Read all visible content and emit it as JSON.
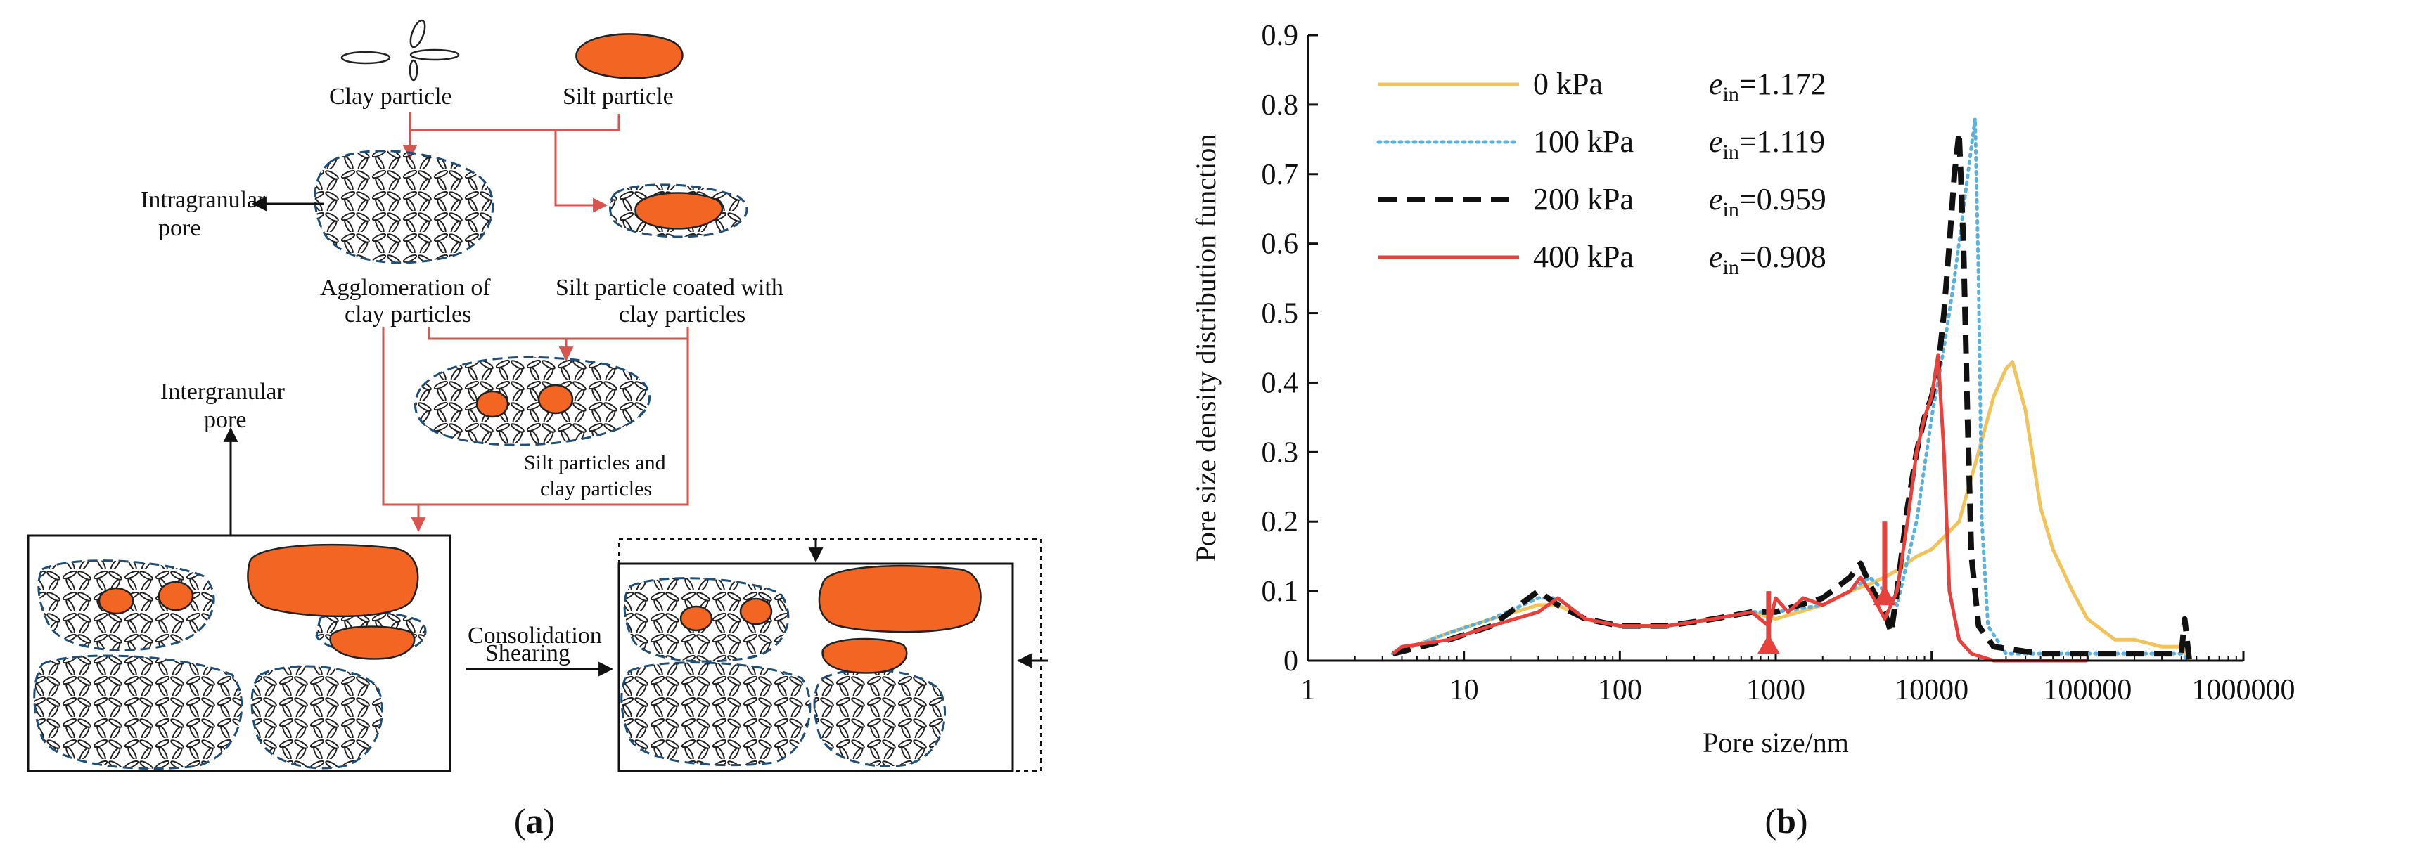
{
  "panel_a": {
    "label_open": "(",
    "label_letter": "a",
    "label_close": ")",
    "texts": {
      "clay_particle": "Clay particle",
      "silt_particle": "Silt particle",
      "intragranular_1": "Intragranular",
      "intragranular_2": "pore",
      "agglomeration_1": "Agglomeration of",
      "agglomeration_2": "clay particles",
      "silt_coated_1": "Silt particle coated with",
      "silt_coated_2": "clay particles",
      "intergranular_1": "Intergranular",
      "intergranular_2": "pore",
      "silt_clay_1": "Silt particles and",
      "silt_clay_2": "clay particles",
      "consolidation": "Consolidation",
      "shearing": "Shearing"
    },
    "colors": {
      "silt": "#f26522",
      "arrow": "#d9534f",
      "outline": "#1f4e79"
    }
  },
  "panel_b": {
    "label_open": "(",
    "label_letter": "b",
    "label_close": ")"
  },
  "chart_data": {
    "type": "line",
    "xlabel": "Pore size/nm",
    "ylabel": "Pore size density distribution function",
    "xscale": "log",
    "xlim": [
      1,
      1000000
    ],
    "ylim": [
      0,
      0.9
    ],
    "xticks": [
      1,
      10,
      100,
      1000,
      10000,
      100000,
      1000000
    ],
    "xtick_labels": [
      "1",
      "10",
      "100",
      "1000",
      "10000",
      "100000",
      "1000000"
    ],
    "yticks": [
      0,
      0.1,
      0.2,
      0.3,
      0.4,
      0.5,
      0.6,
      0.7,
      0.8,
      0.9
    ],
    "ytick_labels": [
      "0",
      "0.1",
      "0.2",
      "0.3",
      "0.4",
      "0.5",
      "0.6",
      "0.7",
      "0.8",
      "0.9"
    ],
    "legend_position": "top-left",
    "series": [
      {
        "name": "0 kPa",
        "e_symbol": "e",
        "e_sub": "in",
        "e_value": "=1.172",
        "color": "#f2c35a",
        "dash": "solid",
        "x": [
          3.5,
          8,
          15,
          30,
          40,
          60,
          100,
          200,
          400,
          700,
          1000,
          2000,
          3000,
          4000,
          5000,
          6000,
          8000,
          10000,
          15000,
          20000,
          25000,
          30000,
          33000,
          40000,
          50000,
          60000,
          80000,
          100000,
          150000,
          200000,
          300000,
          400000,
          450000
        ],
        "y": [
          0.01,
          0.04,
          0.06,
          0.08,
          0.08,
          0.06,
          0.05,
          0.05,
          0.06,
          0.07,
          0.06,
          0.08,
          0.1,
          0.11,
          0.12,
          0.13,
          0.15,
          0.16,
          0.2,
          0.3,
          0.38,
          0.42,
          0.43,
          0.36,
          0.22,
          0.16,
          0.1,
          0.06,
          0.03,
          0.03,
          0.02,
          0.02,
          0.0
        ]
      },
      {
        "name": "100 kPa",
        "e_symbol": "e",
        "e_sub": "in",
        "e_value": "=1.119",
        "color": "#5bb1de",
        "dash": "dotted",
        "x": [
          3.5,
          8,
          15,
          30,
          40,
          60,
          100,
          200,
          400,
          700,
          1000,
          2000,
          3000,
          4000,
          5000,
          6000,
          8000,
          10000,
          12000,
          14000,
          16000,
          18000,
          19000,
          20000,
          21000,
          23000,
          30000,
          50000,
          100000,
          200000,
          400000,
          450000
        ],
        "y": [
          0.01,
          0.04,
          0.06,
          0.09,
          0.09,
          0.06,
          0.05,
          0.05,
          0.06,
          0.07,
          0.07,
          0.08,
          0.1,
          0.12,
          0.1,
          0.08,
          0.2,
          0.35,
          0.45,
          0.55,
          0.65,
          0.74,
          0.78,
          0.55,
          0.2,
          0.05,
          0.01,
          0.01,
          0.01,
          0.01,
          0.01,
          0.0
        ]
      },
      {
        "name": "200 kPa",
        "e_symbol": "e",
        "e_sub": "in",
        "e_value": "=0.959",
        "color": "#111111",
        "dash": "dashed",
        "x": [
          3.5,
          8,
          15,
          30,
          40,
          60,
          100,
          200,
          400,
          700,
          1000,
          2000,
          3000,
          3500,
          4000,
          5000,
          5500,
          6000,
          7000,
          8000,
          9000,
          10000,
          11000,
          12000,
          13000,
          14000,
          15000,
          16000,
          17000,
          18000,
          20000,
          25000,
          50000,
          100000,
          200000,
          300000,
          400000,
          420000,
          450000
        ],
        "y": [
          0.01,
          0.03,
          0.05,
          0.1,
          0.08,
          0.06,
          0.05,
          0.05,
          0.06,
          0.07,
          0.07,
          0.09,
          0.12,
          0.14,
          0.11,
          0.07,
          0.04,
          0.1,
          0.22,
          0.3,
          0.35,
          0.38,
          0.42,
          0.5,
          0.6,
          0.7,
          0.76,
          0.6,
          0.35,
          0.15,
          0.05,
          0.02,
          0.01,
          0.01,
          0.01,
          0.01,
          0.01,
          0.06,
          0.0
        ]
      },
      {
        "name": "400 kPa",
        "e_symbol": "e",
        "e_sub": "in",
        "e_value": "=0.908",
        "color": "#e8413c",
        "dash": "solid",
        "x": [
          3.5,
          4,
          8,
          15,
          30,
          40,
          60,
          100,
          200,
          400,
          700,
          900,
          1000,
          1200,
          1500,
          2000,
          3000,
          3500,
          4000,
          4500,
          5000,
          6000,
          7000,
          8000,
          9000,
          10000,
          11000,
          12000,
          13000,
          15000,
          18000,
          25000,
          50000,
          100000
        ],
        "y": [
          0.01,
          0.02,
          0.03,
          0.05,
          0.07,
          0.09,
          0.06,
          0.05,
          0.05,
          0.06,
          0.07,
          0.05,
          0.09,
          0.07,
          0.09,
          0.08,
          0.1,
          0.12,
          0.1,
          0.08,
          0.06,
          0.1,
          0.2,
          0.3,
          0.35,
          0.38,
          0.44,
          0.3,
          0.1,
          0.03,
          0.01,
          0.0,
          0.0,
          0.0
        ]
      }
    ],
    "annotation_arrows": [
      {
        "x": 5000,
        "y_from": 0.2,
        "y_to": 0.1
      },
      {
        "x": 900,
        "y_from": 0.1,
        "y_to": 0.03
      }
    ]
  }
}
